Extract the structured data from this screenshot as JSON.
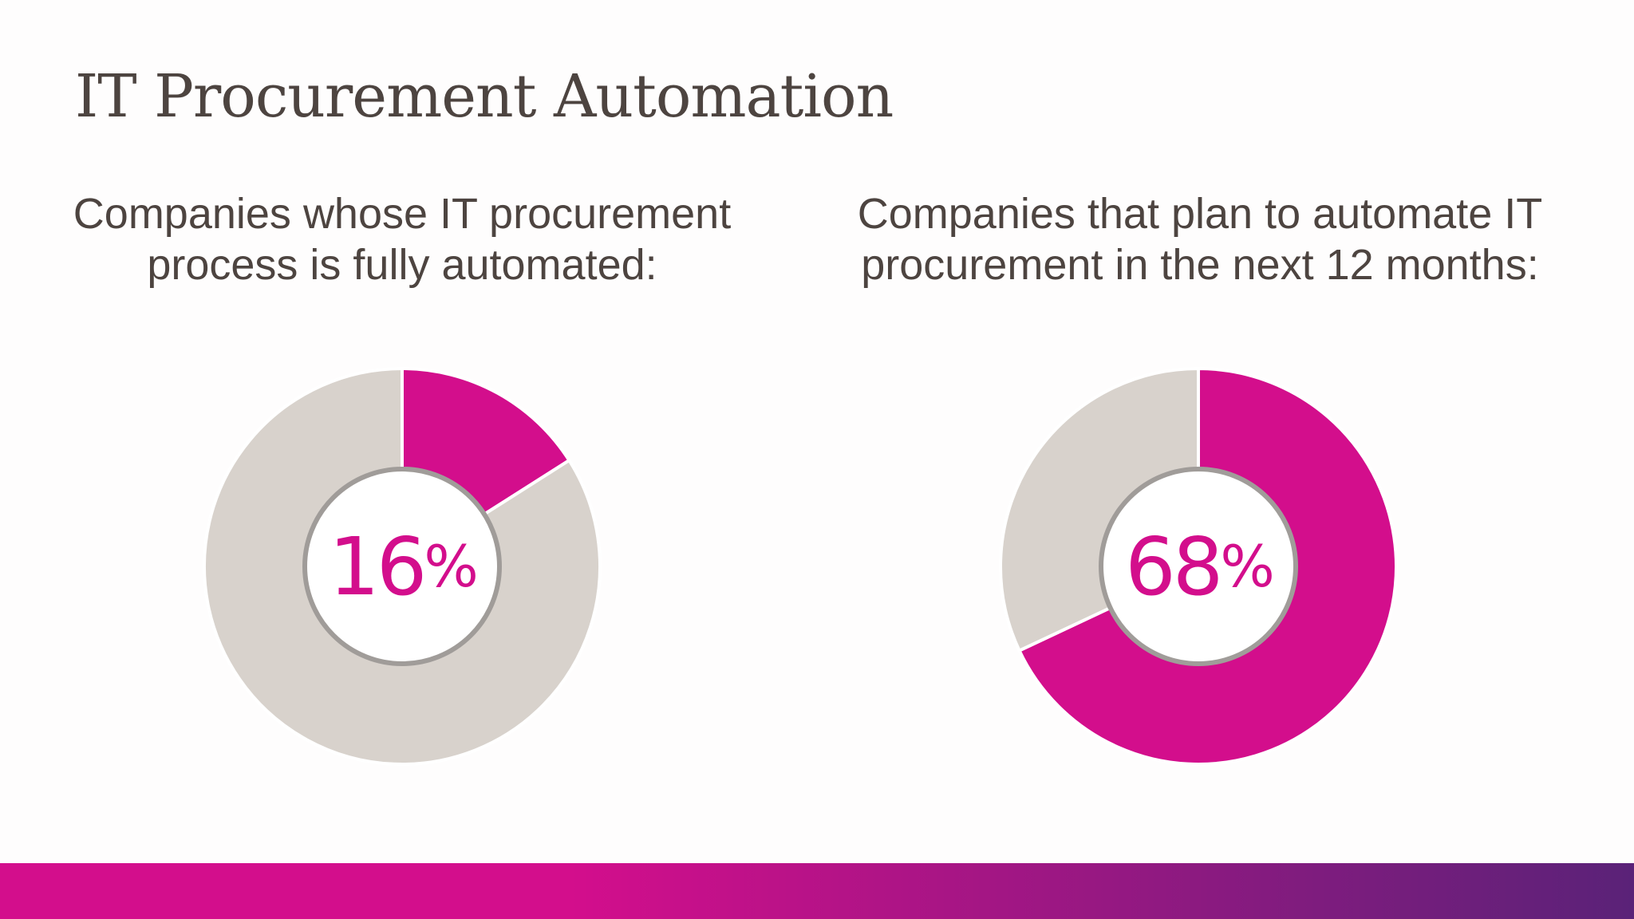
{
  "title": "IT Procurement Automation",
  "colors": {
    "accent": "#d30e8c",
    "track": "#d8d2cc",
    "ring": "#a09c99",
    "text": "#4d4440",
    "bar_start": "#d30e8c",
    "bar_end": "#5a2278"
  },
  "chart_data": [
    {
      "type": "pie",
      "title": "Companies whose IT procurement process is fully automated:",
      "values": [
        16,
        84
      ],
      "center_label": "16",
      "center_unit": "%"
    },
    {
      "type": "pie",
      "title": "Companies that plan to automate IT procurement in the next 12 months:",
      "values": [
        68,
        32
      ],
      "center_label": "68",
      "center_unit": "%"
    }
  ]
}
